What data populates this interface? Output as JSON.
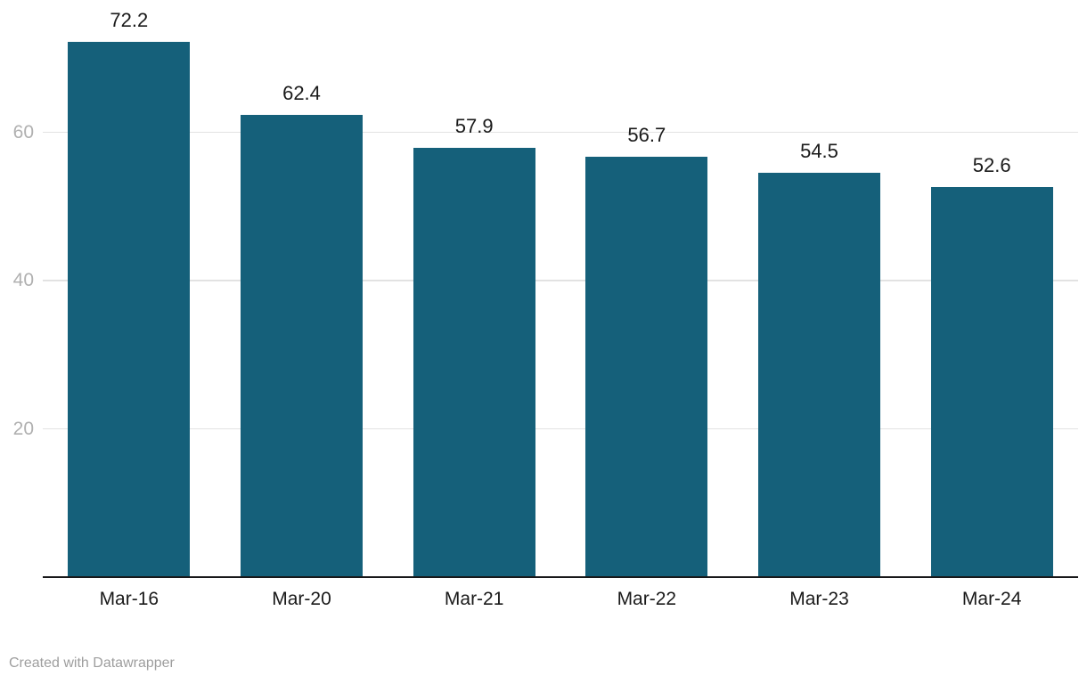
{
  "chart_data": {
    "type": "bar",
    "categories": [
      "Mar-16",
      "Mar-20",
      "Mar-21",
      "Mar-22",
      "Mar-23",
      "Mar-24"
    ],
    "values": [
      72.2,
      62.4,
      57.9,
      56.7,
      54.5,
      52.6
    ],
    "value_labels": [
      "72.2",
      "62.4",
      "57.9",
      "56.7",
      "54.5",
      "52.6"
    ],
    "title": "",
    "xlabel": "",
    "ylabel": "",
    "yticks": [
      20,
      40,
      60
    ],
    "ytick_labels": [
      "20",
      "40",
      "60"
    ],
    "ylim": [
      0,
      78
    ],
    "grid": true,
    "legend": "none",
    "bar_color": "#15607a",
    "axis_color": "#18181a",
    "grid_color": "#e2e2e2",
    "ytick_color": "#b0b0b0",
    "label_color": "#1a1a1a"
  },
  "footer": {
    "credit": "Created with Datawrapper"
  }
}
